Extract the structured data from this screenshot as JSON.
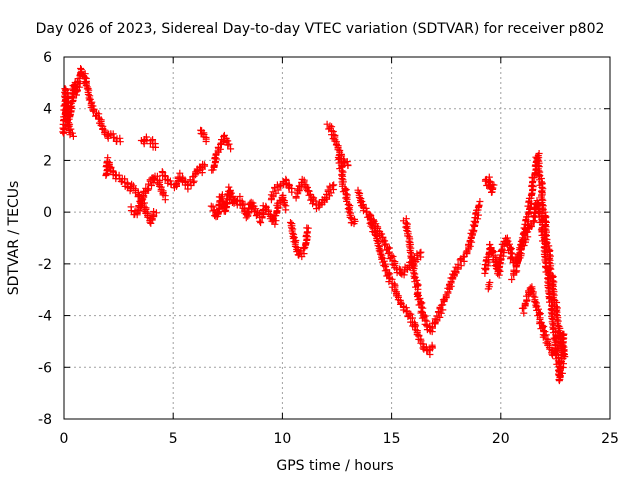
{
  "chart_data": {
    "type": "scatter",
    "title": "Day 026 of 2023, Sidereal Day-to-day VTEC variation (SDTVAR) for receiver p802",
    "xlabel": "GPS time / hours",
    "ylabel": "SDTVAR / TECUs",
    "xlim": [
      0,
      25
    ],
    "ylim": [
      -8,
      6
    ],
    "xticks": [
      0,
      5,
      10,
      15,
      20,
      25
    ],
    "yticks": [
      -8,
      -6,
      -4,
      -2,
      0,
      2,
      4,
      6
    ],
    "grid": true,
    "marker": "plus",
    "color": "#ff0000",
    "series": [
      {
        "name": "SDTVAR",
        "segments": [
          {
            "x": [
              0.0,
              0.1,
              0.2,
              0.35,
              0.5,
              0.6,
              0.75,
              0.9,
              1.0,
              1.1,
              1.25,
              1.4,
              1.6,
              1.8,
              2.0,
              2.2,
              2.4,
              2.6
            ],
            "y": [
              3.0,
              4.8,
              3.5,
              4.2,
              5.0,
              4.6,
              5.5,
              5.3,
              5.0,
              4.8,
              4.2,
              3.9,
              3.6,
              3.2,
              2.9,
              3.0,
              2.8,
              2.7
            ]
          },
          {
            "x": [
              0.0,
              0.15,
              0.3,
              0.45
            ],
            "y": [
              4.0,
              3.7,
              3.1,
              2.9
            ]
          },
          {
            "x": [
              1.9,
              2.0,
              2.2,
              2.4,
              2.6,
              2.8,
              3.0,
              3.2,
              3.4,
              3.6,
              3.8,
              4.0,
              4.2
            ],
            "y": [
              1.4,
              2.0,
              1.6,
              1.4,
              1.3,
              1.1,
              0.9,
              1.0,
              0.7,
              0.3,
              -0.1,
              -0.4,
              0.1
            ]
          },
          {
            "x": [
              3.1,
              3.3,
              3.5,
              3.7,
              3.9,
              4.1,
              4.3,
              4.5,
              4.7
            ],
            "y": [
              0.1,
              -0.1,
              0.3,
              0.7,
              1.0,
              1.4,
              1.2,
              0.8,
              0.5
            ]
          },
          {
            "x": [
              3.6,
              3.8,
              4.0,
              4.2
            ],
            "y": [
              2.7,
              2.8,
              2.7,
              2.5
            ]
          },
          {
            "x": [
              4.5,
              4.7,
              4.9,
              5.1,
              5.3,
              5.5,
              5.7,
              5.9,
              6.1,
              6.3,
              6.5
            ],
            "y": [
              1.5,
              1.3,
              1.1,
              1.0,
              1.4,
              1.2,
              1.0,
              1.3,
              1.7,
              1.6,
              1.9
            ]
          },
          {
            "x": [
              6.2,
              6.4,
              6.6
            ],
            "y": [
              3.1,
              3.0,
              2.7
            ]
          },
          {
            "x": [
              6.8,
              7.0,
              7.2,
              7.4,
              7.6
            ],
            "y": [
              1.6,
              2.3,
              2.6,
              2.9,
              2.5
            ]
          },
          {
            "x": [
              6.8,
              7.0,
              7.2,
              7.4,
              7.6,
              7.8,
              8.0,
              8.2,
              8.4,
              8.6,
              8.8,
              9.0,
              9.2,
              9.4,
              9.6,
              9.8,
              10.0,
              10.2
            ],
            "y": [
              0.2,
              -0.2,
              0.6,
              0.0,
              0.9,
              0.3,
              0.5,
              0.2,
              -0.2,
              0.4,
              0.0,
              -0.3,
              0.2,
              0.0,
              -0.4,
              0.3,
              0.6,
              0.1
            ]
          },
          {
            "x": [
              9.5,
              9.7,
              9.9,
              10.1,
              10.3,
              10.5
            ],
            "y": [
              0.5,
              0.9,
              1.0,
              1.2,
              1.0,
              0.8
            ]
          },
          {
            "x": [
              10.4,
              10.6,
              10.8,
              11.0,
              11.2
            ],
            "y": [
              -0.4,
              -1.2,
              -1.7,
              -1.4,
              -0.6
            ]
          },
          {
            "x": [
              10.6,
              10.8,
              11.0,
              11.2,
              11.4,
              11.6,
              11.8,
              12.0,
              12.2,
              12.4
            ],
            "y": [
              0.6,
              1.0,
              1.2,
              0.8,
              0.4,
              0.2,
              0.3,
              0.5,
              0.9,
              1.1
            ]
          },
          {
            "x": [
              12.1,
              12.3,
              12.5,
              12.7,
              12.9,
              13.1
            ],
            "y": [
              3.4,
              3.0,
              2.6,
              2.2,
              1.9,
              1.8
            ]
          },
          {
            "x": [
              12.6,
              12.8,
              13.0,
              13.2,
              13.4
            ],
            "y": [
              2.2,
              1.0,
              0.3,
              -0.4,
              -0.3
            ]
          },
          {
            "x": [
              13.5,
              13.7,
              13.9,
              14.1,
              14.3,
              14.5,
              14.7,
              14.9,
              15.1,
              15.3,
              15.5,
              15.7,
              15.9,
              16.1,
              16.3,
              16.5,
              16.7,
              16.9
            ],
            "y": [
              0.8,
              0.2,
              0.0,
              -0.6,
              -0.9,
              -1.5,
              -2.1,
              -2.6,
              -2.9,
              -3.3,
              -3.6,
              -3.8,
              -4.2,
              -4.5,
              -4.9,
              -5.2,
              -5.4,
              -5.1
            ]
          },
          {
            "x": [
              14.0,
              14.3,
              14.6,
              14.9,
              15.2,
              15.5,
              15.8,
              16.1,
              16.4
            ],
            "y": [
              -0.2,
              -0.5,
              -1.0,
              -1.6,
              -2.2,
              -2.4,
              -2.1,
              -1.8,
              -1.5
            ]
          },
          {
            "x": [
              15.6,
              15.8,
              16.0,
              16.2,
              16.4,
              16.6,
              16.8,
              17.0,
              17.2,
              17.4,
              17.6,
              17.8,
              18.0,
              18.2,
              18.4,
              18.6,
              18.8,
              19.0
            ],
            "y": [
              -0.3,
              -1.0,
              -2.1,
              -3.1,
              -3.9,
              -4.4,
              -4.6,
              -4.3,
              -3.9,
              -3.4,
              -3.0,
              -2.6,
              -2.2,
              -1.9,
              -1.6,
              -1.2,
              -0.6,
              0.4
            ]
          },
          {
            "x": [
              19.3,
              19.4,
              19.5,
              19.6,
              19.7
            ],
            "y": [
              1.1,
              1.3,
              1.0,
              0.8,
              1.1
            ]
          },
          {
            "x": [
              19.3,
              19.5,
              19.7,
              19.9,
              20.1,
              20.3,
              20.5,
              20.7,
              20.9,
              21.1,
              21.3,
              21.5,
              21.7,
              21.9,
              22.1,
              22.3,
              22.5,
              22.7,
              22.9
            ],
            "y": [
              -2.3,
              -1.3,
              -1.8,
              -2.4,
              -1.4,
              -1.0,
              -1.8,
              -2.0,
              -1.6,
              -0.8,
              0.2,
              1.3,
              2.2,
              0.6,
              -1.0,
              -2.3,
              -3.6,
              -4.6,
              -5.6
            ]
          },
          {
            "x": [
              19.4,
              19.6
            ],
            "y": [
              -2.9,
              -2.8
            ]
          },
          {
            "x": [
              20.5,
              20.7,
              20.9,
              21.1,
              21.3,
              21.5,
              21.7,
              21.9,
              22.1,
              22.3,
              22.5,
              22.7,
              22.8,
              22.9
            ],
            "y": [
              -2.5,
              -2.2,
              -1.5,
              -1.0,
              -0.6,
              -0.3,
              0.4,
              -0.6,
              -2.1,
              -3.6,
              -4.9,
              -6.5,
              -6.0,
              -4.6
            ]
          },
          {
            "x": [
              21.0,
              21.2,
              21.4,
              21.6,
              21.8,
              22.0,
              22.2,
              22.4,
              22.6,
              22.8
            ],
            "y": [
              -3.8,
              -3.3,
              -2.9,
              -3.4,
              -4.2,
              -4.8,
              -5.2,
              -5.5,
              -5.3,
              -5.0
            ]
          }
        ]
      }
    ]
  }
}
